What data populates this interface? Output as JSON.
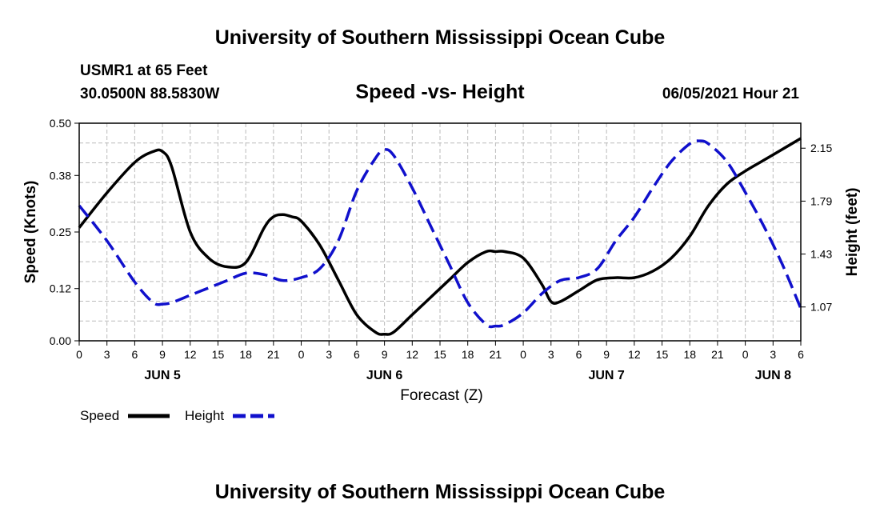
{
  "header": {
    "title": "University of Southern Mississippi Ocean Cube",
    "station": "USMR1 at 65 Feet",
    "coords": "30.0500N  88.5830W",
    "timestamp": "06/05/2021 Hour 21"
  },
  "footer": {
    "title": "University of Southern Mississippi Ocean Cube"
  },
  "colors": {
    "speed": "#000000",
    "height": "#1010cc",
    "grid": "#bbbbbb"
  },
  "chart_data": {
    "type": "line",
    "title": "Speed -vs- Height",
    "xlabel": "Forecast (Z)",
    "ylabel": "Speed (Knots)",
    "y2label": "Height (feet)",
    "x_unit": "hours since JUN 5 00Z",
    "xlim": [
      0,
      78
    ],
    "ylim": [
      0,
      0.5
    ],
    "y2lim": [
      0.84,
      2.32
    ],
    "x_ticks": [
      0,
      3,
      6,
      9,
      12,
      15,
      18,
      21,
      24,
      27,
      30,
      33,
      36,
      39,
      42,
      45,
      48,
      51,
      54,
      57,
      60,
      63,
      66,
      69,
      72,
      75,
      78
    ],
    "x_tick_labels": [
      "0",
      "3",
      "6",
      "9",
      "12",
      "15",
      "18",
      "21",
      "0",
      "3",
      "6",
      "9",
      "12",
      "15",
      "18",
      "21",
      "0",
      "3",
      "6",
      "9",
      "12",
      "15",
      "18",
      "21",
      "0",
      "3",
      "6"
    ],
    "date_labels": [
      {
        "x": 9,
        "label": "JUN 5"
      },
      {
        "x": 33,
        "label": "JUN 6"
      },
      {
        "x": 57,
        "label": "JUN 7"
      },
      {
        "x": 75,
        "label": "JUN 8"
      }
    ],
    "y_ticks": [
      0.0,
      0.12,
      0.25,
      0.38,
      0.5
    ],
    "y_tick_labels": [
      "0.00",
      "0.12",
      "0.25",
      "0.38",
      "0.50"
    ],
    "y2_ticks": [
      1.07,
      1.43,
      1.79,
      2.15
    ],
    "y2_tick_labels": [
      "1.07",
      "1.43",
      "1.79",
      "2.15"
    ],
    "grid": true,
    "legend": {
      "placement": "bottom-left"
    },
    "series": [
      {
        "name": "Speed",
        "axis": "left",
        "style": "solid",
        "x": [
          0,
          3,
          6,
          8,
          9,
          10,
          12,
          14,
          16,
          18,
          20,
          21,
          22,
          23,
          24,
          26,
          28,
          30,
          32,
          33,
          34,
          36,
          38,
          40,
          42,
          44,
          45,
          46,
          48,
          50,
          51,
          52,
          54,
          56,
          58,
          60,
          62,
          64,
          66,
          68,
          70,
          72,
          74,
          76,
          78
        ],
        "values": [
          0.26,
          0.34,
          0.41,
          0.435,
          0.435,
          0.4,
          0.25,
          0.19,
          0.17,
          0.18,
          0.26,
          0.285,
          0.29,
          0.285,
          0.275,
          0.22,
          0.14,
          0.06,
          0.02,
          0.015,
          0.02,
          0.06,
          0.1,
          0.14,
          0.18,
          0.205,
          0.205,
          0.205,
          0.19,
          0.13,
          0.09,
          0.09,
          0.115,
          0.14,
          0.145,
          0.145,
          0.16,
          0.19,
          0.24,
          0.31,
          0.36,
          0.39,
          0.415,
          0.44,
          0.465
        ]
      },
      {
        "name": "Height",
        "axis": "right",
        "style": "dashed",
        "x": [
          0,
          3,
          6,
          8,
          9,
          10,
          12,
          14,
          16,
          18,
          20,
          22,
          24,
          26,
          28,
          30,
          32,
          33,
          34,
          36,
          38,
          40,
          42,
          44,
          45,
          46,
          48,
          50,
          52,
          54,
          56,
          58,
          60,
          62,
          64,
          66,
          67,
          68,
          70,
          72,
          74,
          76,
          78
        ],
        "values": [
          1.76,
          1.52,
          1.24,
          1.1,
          1.09,
          1.1,
          1.15,
          1.2,
          1.25,
          1.3,
          1.29,
          1.25,
          1.27,
          1.33,
          1.52,
          1.86,
          2.08,
          2.14,
          2.1,
          1.88,
          1.62,
          1.36,
          1.1,
          0.95,
          0.94,
          0.95,
          1.03,
          1.16,
          1.25,
          1.27,
          1.33,
          1.52,
          1.68,
          1.88,
          2.06,
          2.18,
          2.2,
          2.18,
          2.06,
          1.85,
          1.62,
          1.36,
          1.06
        ]
      }
    ]
  }
}
